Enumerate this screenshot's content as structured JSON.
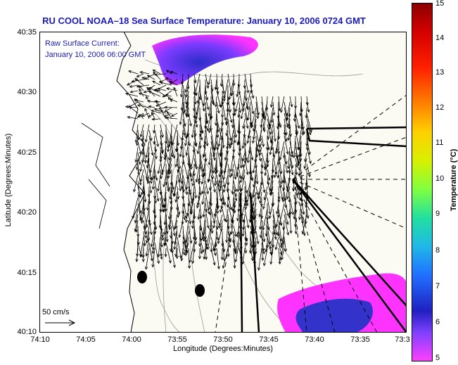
{
  "title": "RU COOL  NOAA–18  Sea Surface Temperature:  January 10, 2006 0724 GMT",
  "overlay": {
    "line1": "Raw Surface Current:",
    "line2": "January 10, 2006 06:00 GMT"
  },
  "axes": {
    "xlabel": "Longitude (Degrees:Minutes)",
    "ylabel": "Latitude (Degrees:Minutes)",
    "xticks": [
      "74:10",
      "74:05",
      "74:00",
      "73:55",
      "73:50",
      "73:45",
      "73:40",
      "73:35",
      "73:3"
    ],
    "yticks": [
      "40:35",
      "40:30",
      "40:25",
      "40:20",
      "40:15",
      "40:10"
    ]
  },
  "colorbar": {
    "label": "Temperature (°C)",
    "ticks": [
      "15",
      "14",
      "13",
      "12",
      "11",
      "10",
      "9",
      "8",
      "7",
      "6",
      "5"
    ],
    "range": [
      5,
      15
    ]
  },
  "scale": {
    "label": "50 cm/s"
  },
  "colors": {
    "text_blue": "#1a1ab8",
    "land": "#ffffff",
    "sea_bg": "#fbfbf3",
    "sst_magenta": "#ff33ff",
    "sst_blue": "#3333cc"
  }
}
